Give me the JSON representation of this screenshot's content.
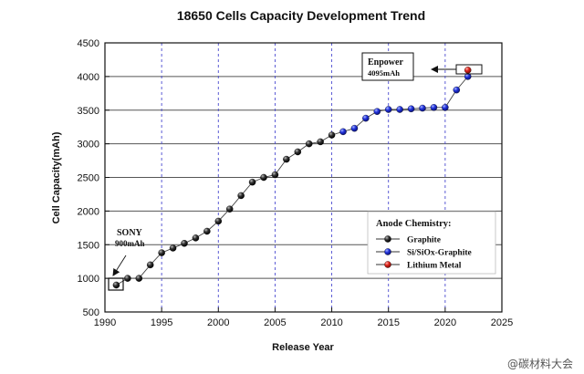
{
  "chart_data": {
    "type": "scatter",
    "title": "18650 Cells Capacity Development Trend",
    "xlabel": "Release Year",
    "ylabel": "Cell Capacity(mAh)",
    "xlim": [
      1990,
      2025
    ],
    "ylim": [
      500,
      4500
    ],
    "xticks": [
      1990,
      1995,
      2000,
      2005,
      2010,
      2015,
      2020,
      2025
    ],
    "yticks": [
      500,
      1000,
      1500,
      2000,
      2500,
      3000,
      3500,
      4000,
      4500
    ],
    "grid": "vertical dashed at x-ticks, horizontal solid at y-ticks",
    "legend": {
      "title": "Anode Chemistry:",
      "placement": "lower-right",
      "entries": [
        {
          "name": "Graphite",
          "color": "#1a1a1a"
        },
        {
          "name": "Si/SiOx-Graphite",
          "color": "#1f2fd6"
        },
        {
          "name": "Lithium Metal",
          "color": "#e0241b"
        }
      ]
    },
    "series": [
      {
        "name": "Graphite",
        "color": "#1a1a1a",
        "x": [
          1991,
          1992,
          1993,
          1994,
          1995,
          1996,
          1997,
          1998,
          1999,
          2000,
          2001,
          2002,
          2003,
          2004,
          2005,
          2006,
          2007,
          2008,
          2009,
          2010
        ],
        "y": [
          900,
          1000,
          1000,
          1200,
          1380,
          1450,
          1520,
          1600,
          1700,
          1850,
          2030,
          2230,
          2430,
          2500,
          2540,
          2770,
          2880,
          3000,
          3030,
          3130
        ]
      },
      {
        "name": "Si/SiOx-Graphite",
        "color": "#1f2fd6",
        "x": [
          2011,
          2012,
          2013,
          2014,
          2015,
          2016,
          2017,
          2018,
          2019,
          2020,
          2021,
          2022
        ],
        "y": [
          3180,
          3230,
          3380,
          3480,
          3510,
          3510,
          3520,
          3530,
          3540,
          3540,
          3800,
          4000
        ]
      },
      {
        "name": "Lithium Metal",
        "color": "#e0241b",
        "x": [
          2022
        ],
        "y": [
          4095
        ]
      }
    ],
    "annotations": [
      {
        "name": "sony",
        "line1": "SONY",
        "line2": "900mAh",
        "x": 1991,
        "y": 900
      },
      {
        "name": "enpower",
        "line1": "Enpower",
        "line2": "4095mAh",
        "x": 2022,
        "y": 4095
      }
    ]
  },
  "watermark": "@碳材料大会"
}
